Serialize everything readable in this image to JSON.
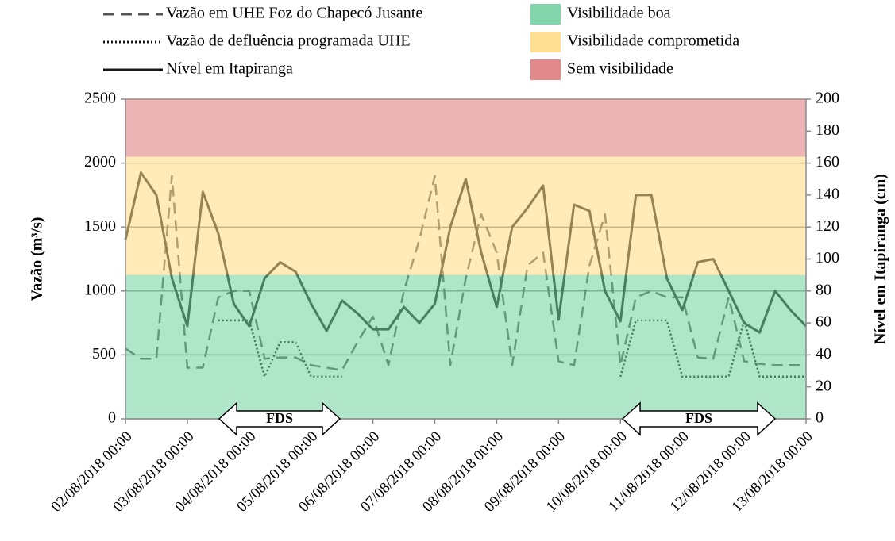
{
  "chart_data": {
    "type": "line",
    "ylabel": "Vazão (m³/s)",
    "y2label": "Nível em Itapiranga (cm)",
    "xlim": [
      "02/08/2018 00:00",
      "13/08/2018 00:00"
    ],
    "xticks": [
      "02/08/2018 00:00",
      "03/08/2018 00:00",
      "04/08/2018 00:00",
      "05/08/2018 00:00",
      "06/08/2018 00:00",
      "07/08/2018 00:00",
      "08/08/2018 00:00",
      "09/08/2018 00:00",
      "10/08/2018 00:00",
      "11/08/2018 00:00",
      "12/08/2018 00:00",
      "13/08/2018 00:00"
    ],
    "xtick_colors": [
      "#c8c8c8",
      "#c8c8c8",
      "#000000",
      "#000000",
      "#c8c8c8",
      "#c8c8c8",
      "#c8c8c8",
      "#c8c8c8",
      "#000000",
      "#000000",
      "#000000",
      "#c8c8c8"
    ],
    "ylim": [
      0,
      2500
    ],
    "yticks": [
      0,
      500,
      1000,
      1500,
      2000,
      2500
    ],
    "y2lim": [
      0,
      200
    ],
    "y2ticks": [
      0,
      20,
      40,
      60,
      80,
      100,
      120,
      140,
      160,
      180,
      200
    ],
    "grid": true,
    "bands": [
      {
        "name": "Visibilidade boa",
        "color": "#6dcf9c",
        "range": [
          0,
          1125
        ]
      },
      {
        "name": "Visibilidade comprometida",
        "color": "#ffd97e",
        "range": [
          1125,
          2050
        ]
      },
      {
        "name": "Sem visibilidade",
        "color": "#dc7678",
        "range": [
          2050,
          2500
        ]
      }
    ],
    "annotations": [
      "FDS",
      "FDS"
    ],
    "x": [
      "02/08/2018 00:00",
      "02/08/2018 06:00",
      "02/08/2018 12:00",
      "02/08/2018 18:00",
      "03/08/2018 00:00",
      "03/08/2018 06:00",
      "03/08/2018 12:00",
      "03/08/2018 18:00",
      "04/08/2018 00:00",
      "04/08/2018 06:00",
      "04/08/2018 12:00",
      "04/08/2018 18:00",
      "05/08/2018 00:00",
      "05/08/2018 06:00",
      "05/08/2018 12:00",
      "05/08/2018 18:00",
      "06/08/2018 00:00",
      "06/08/2018 06:00",
      "06/08/2018 12:00",
      "06/08/2018 18:00",
      "07/08/2018 00:00",
      "07/08/2018 06:00",
      "07/08/2018 12:00",
      "07/08/2018 18:00",
      "08/08/2018 00:00",
      "08/08/2018 06:00",
      "08/08/2018 12:00",
      "08/08/2018 18:00",
      "09/08/2018 00:00",
      "09/08/2018 06:00",
      "09/08/2018 12:00",
      "09/08/2018 18:00",
      "10/08/2018 00:00",
      "10/08/2018 06:00",
      "10/08/2018 12:00",
      "10/08/2018 18:00",
      "11/08/2018 00:00",
      "11/08/2018 06:00",
      "11/08/2018 12:00",
      "11/08/2018 18:00",
      "12/08/2018 00:00",
      "12/08/2018 06:00",
      "12/08/2018 12:00",
      "12/08/2018 18:00",
      "13/08/2018 00:00"
    ],
    "series": [
      {
        "name": "Vazão em UHE Foz do Chapecó Jusante",
        "color": "#555555",
        "dash": "14,8",
        "values": [
          550,
          470,
          470,
          1900,
          400,
          400,
          950,
          1000,
          1000,
          470,
          480,
          480,
          420,
          400,
          380,
          600,
          800,
          420,
          1000,
          1400,
          1900,
          420,
          1100,
          1600,
          1300,
          420,
          1200,
          1300,
          450,
          420,
          1200,
          1600,
          420,
          950,
          1000,
          950,
          950,
          480,
          470,
          950,
          450,
          430,
          420,
          420,
          420
        ]
      },
      {
        "name": "Vazão de defluência programada UHE",
        "color": "#111111",
        "dash": "2,3",
        "values": [
          null,
          null,
          null,
          null,
          null,
          null,
          770,
          770,
          770,
          330,
          600,
          600,
          330,
          330,
          330,
          null,
          null,
          null,
          null,
          null,
          null,
          null,
          null,
          null,
          null,
          null,
          null,
          null,
          null,
          null,
          null,
          null,
          330,
          770,
          770,
          770,
          330,
          330,
          330,
          330,
          770,
          330,
          330,
          330,
          330
        ]
      },
      {
        "name": "Nível em Itapiranga",
        "color": "#1a1a1a",
        "dash": "none",
        "axis": "y2",
        "values": [
          112,
          154,
          140,
          88,
          58,
          142,
          116,
          72,
          58,
          88,
          98,
          92,
          72,
          55,
          74,
          66,
          56,
          56,
          70,
          60,
          72,
          120,
          150,
          104,
          70,
          120,
          132,
          146,
          62,
          134,
          130,
          80,
          61,
          140,
          140,
          88,
          68,
          98,
          100,
          80,
          60,
          54,
          80,
          68,
          58
        ]
      }
    ]
  }
}
